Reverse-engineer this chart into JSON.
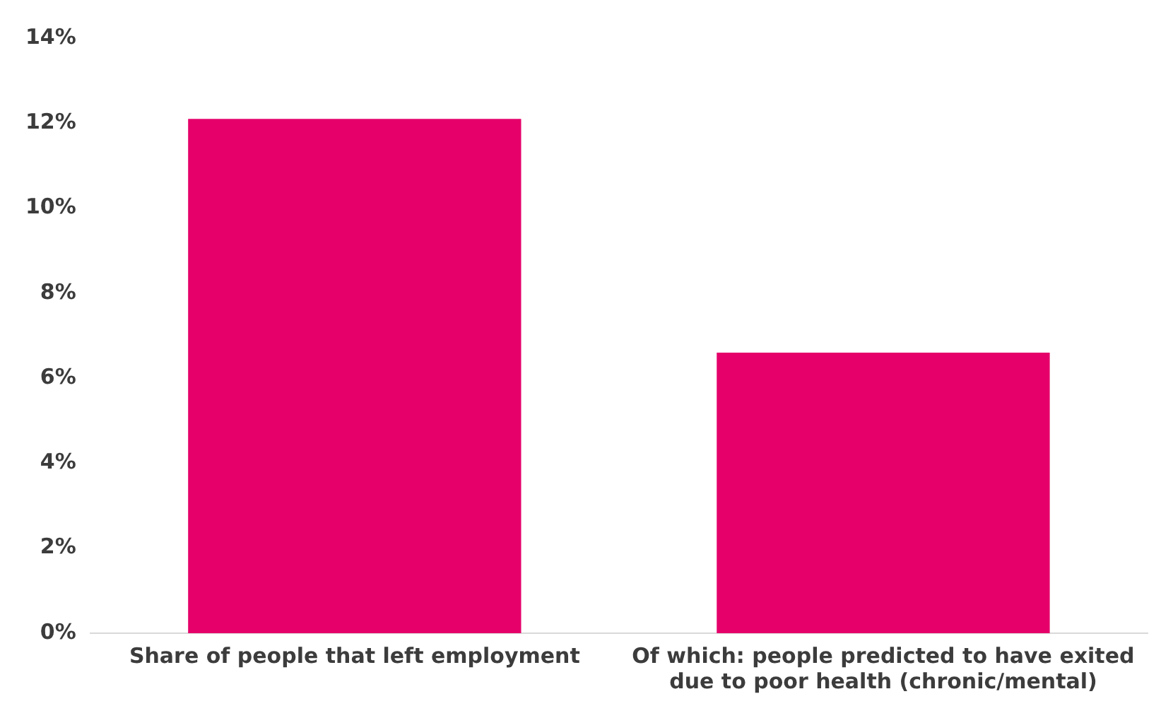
{
  "chart_data": {
    "type": "bar",
    "categories": [
      "Share of people that left employment",
      "Of which: people predicted to have exited due to poor health (chronic/mental)"
    ],
    "values": [
      12.1,
      6.6
    ],
    "color": "#e5006a",
    "ylim": [
      0,
      14
    ],
    "yticks": [
      {
        "value": 0,
        "label": "0%"
      },
      {
        "value": 2,
        "label": "2%"
      },
      {
        "value": 4,
        "label": "4%"
      },
      {
        "value": 6,
        "label": "6%"
      },
      {
        "value": 8,
        "label": "8%"
      },
      {
        "value": 10,
        "label": "10%"
      },
      {
        "value": 12,
        "label": "12%"
      },
      {
        "value": 14,
        "label": "14%"
      }
    ],
    "grid": false,
    "legend": false
  }
}
